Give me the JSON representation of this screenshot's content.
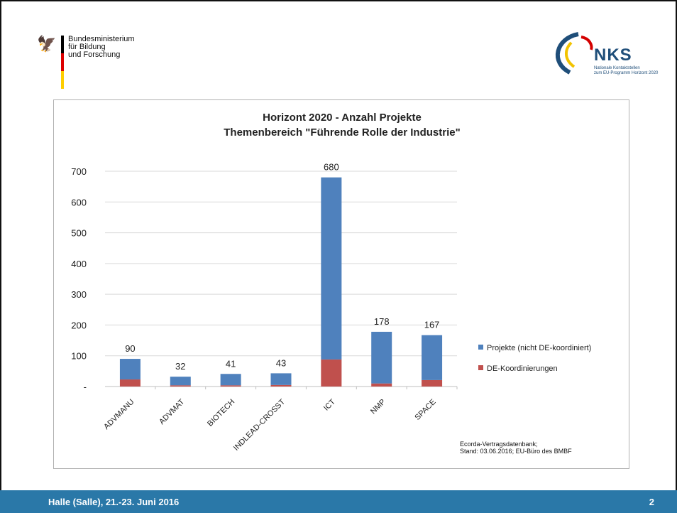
{
  "header": {
    "ministry_name": "Bundesministerium\nfür Bildung\nund Forschung",
    "nks_word": "NKS",
    "nks_subtitle": "Nationale Kontaktstellen\nzum EU-Programm Horizont 2020"
  },
  "chart_data": {
    "type": "bar",
    "stacked": true,
    "title": "Horizont 2020 - Anzahl Projekte",
    "subtitle": "Themenbereich \"Führende Rolle der Industrie\"",
    "categories": [
      "ADVMANU",
      "ADVMAT",
      "BIOTECH",
      "INDLEAD-CROSST",
      "ICT",
      "NMP",
      "SPACE"
    ],
    "series": [
      {
        "name": "DE-Koordinierungen",
        "color": "#c0504d",
        "values": [
          23,
          4,
          4,
          5,
          88,
          10,
          21
        ]
      },
      {
        "name": "Projekte (nicht DE-koordiniert)",
        "color": "#4f81bd",
        "values": [
          67,
          28,
          37,
          38,
          592,
          168,
          146
        ]
      }
    ],
    "totals": [
      90,
      32,
      41,
      43,
      680,
      178,
      167
    ],
    "yticks": [
      "-",
      "100",
      "200",
      "300",
      "400",
      "500",
      "600",
      "700"
    ],
    "ylim": [
      0,
      700
    ],
    "grid": true,
    "legend": "right"
  },
  "source_note": "Ecorda-Vertragsdatenbank;\nStand: 03.06.2016; EU-Büro des BMBF",
  "footer": {
    "event": "Halle (Salle), 21.-23. Juni 2016",
    "page_number": "2"
  }
}
